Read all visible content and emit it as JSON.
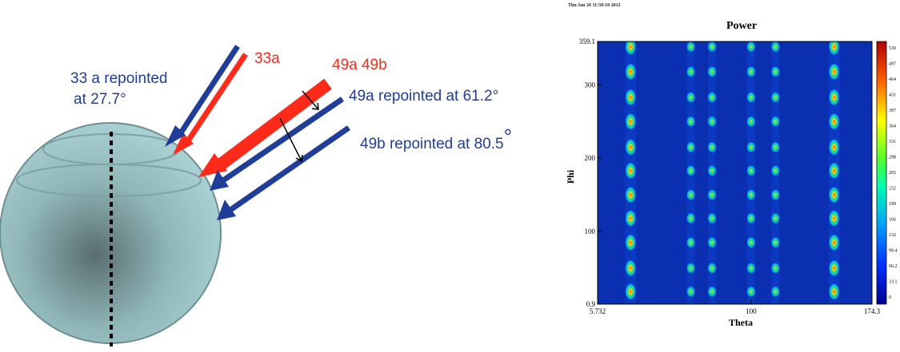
{
  "diagram": {
    "labels": {
      "l33a": "33a",
      "l49ab": "49a 49b",
      "repoint33_line1": "33 a repointed",
      "repoint33_line2": "at 27.7°",
      "repoint49a": "49a repointed at 61.2°",
      "repoint49b": "49b repointed at 80.5",
      "degree": "°"
    },
    "colors": {
      "blue": "#1f3d99",
      "red": "#ff2a1a",
      "sphere": "#9cc4c6"
    }
  },
  "plot": {
    "timestamp": "Thu Jan 26 11:58:10 2012",
    "colors": {
      "background": "#0a2fb0",
      "spot_outer": "#00c8ff",
      "spot_mid": "#22e07a",
      "spot_core": "#ffd21a",
      "spot_hot": "#ff3a10"
    }
  },
  "chart_data": {
    "type": "heatmap",
    "title": "Power",
    "xlabel": "Theta",
    "ylabel": "Phi",
    "xlim": [
      5.732,
      174.3
    ],
    "ylim": [
      0.9,
      359.1
    ],
    "x_ticks": [
      "5.732",
      "100",
      "174.3"
    ],
    "y_ticks": [
      "0.9",
      "100",
      "200",
      "300",
      "359.1"
    ],
    "colorbar": [
      "530",
      "497",
      "464",
      "431",
      "397",
      "364",
      "331",
      "298",
      "265",
      "232",
      "199",
      "166",
      "132",
      "99.4",
      "66.2",
      "33.1",
      "0"
    ],
    "columns": [
      {
        "theta": 26,
        "phi": [
          18,
          50,
          85,
          118,
          150,
          183,
          215,
          250,
          283,
          318,
          352
        ],
        "strength": 0.95
      },
      {
        "theta": 63,
        "phi": [
          18,
          50,
          85,
          118,
          150,
          183,
          215,
          250,
          283,
          318,
          352
        ],
        "strength": 0.55
      },
      {
        "theta": 76,
        "phi": [
          18,
          50,
          85,
          118,
          150,
          183,
          215,
          250,
          283,
          318,
          352
        ],
        "strength": 0.6
      },
      {
        "theta": 100,
        "phi": [
          18,
          50,
          85,
          118,
          150,
          183,
          215,
          250,
          283,
          318,
          352
        ],
        "strength": 0.55
      },
      {
        "theta": 115,
        "phi": [
          18,
          50,
          85,
          118,
          150,
          183,
          215,
          250,
          283,
          318,
          352
        ],
        "strength": 0.55
      },
      {
        "theta": 151,
        "phi": [
          18,
          50,
          85,
          118,
          150,
          183,
          215,
          250,
          283,
          318,
          352
        ],
        "strength": 1.0
      }
    ]
  }
}
